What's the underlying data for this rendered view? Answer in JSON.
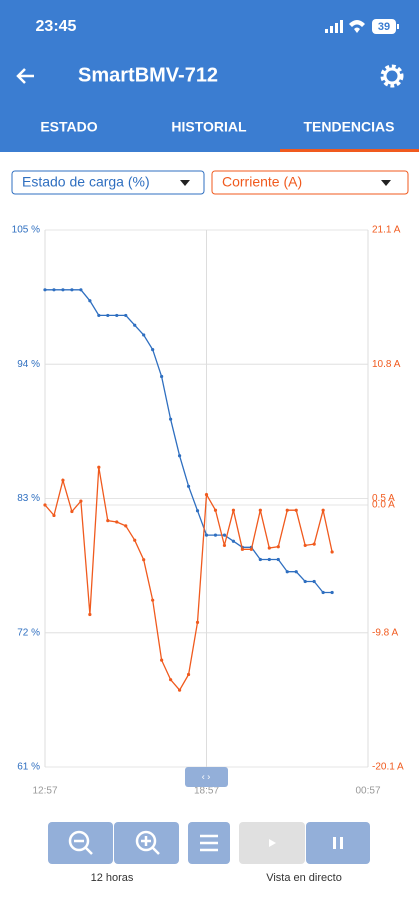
{
  "status_bar": {
    "time": "23:45",
    "battery": "39"
  },
  "header": {
    "title": "SmartBMV-712"
  },
  "tabs": [
    "ESTADO",
    "HISTORIAL",
    "TENDENCIAS"
  ],
  "selectors": {
    "left": "Estado de carga (%)",
    "right": "Corriente (A)"
  },
  "chart_data": {
    "type": "line",
    "categories": [
      "12:57",
      null,
      null,
      null,
      null,
      null,
      null,
      null,
      null,
      null,
      null,
      null,
      null,
      null,
      null,
      null,
      null,
      null,
      "18:57",
      null,
      null,
      null,
      null,
      null,
      null,
      null,
      null,
      null,
      null,
      null,
      null,
      null,
      null,
      null,
      null,
      null,
      "00:57"
    ],
    "ylim": [
      61,
      105
    ],
    "yticks": [
      {
        "value": 61,
        "label": "61 %"
      },
      {
        "value": 72,
        "label": "72 %"
      },
      {
        "value": 83,
        "label": "83 %"
      },
      {
        "value": 94,
        "label": "94 %"
      },
      {
        "value": 105,
        "label": "105 %"
      }
    ],
    "y2lim": [
      -20.1,
      21.1
    ],
    "y2ticks": [
      {
        "value": -20.1,
        "label": "-20.1 A"
      },
      {
        "value": -9.8,
        "label": "-9.8 A"
      },
      {
        "value": 0,
        "label": "0.0 A"
      },
      {
        "value": 0.5,
        "label": "0.5 A"
      },
      {
        "value": 10.8,
        "label": "10.8 A"
      },
      {
        "value": 21.1,
        "label": "21.1 A"
      }
    ],
    "grid": true,
    "series": [
      {
        "name": "Estado de carga (%)",
        "color": "#2f6fc0",
        "values": [
          100.1,
          100.1,
          100.1,
          100.1,
          100.1,
          99.2,
          98.0,
          98.0,
          98.0,
          98.0,
          97.2,
          96.4,
          95.2,
          93.0,
          89.5,
          86.5,
          84.0,
          82.0,
          80.0,
          80.0,
          80.0,
          79.5,
          79.0,
          79.0,
          78.0,
          78.0,
          78.0,
          77.0,
          77.0,
          76.2,
          76.2,
          75.3,
          75.3,
          null,
          null,
          null,
          null
        ]
      },
      {
        "name": "Corriente (A)",
        "color": "#f05a1e",
        "axis": "y2",
        "values": [
          0.0,
          -0.8,
          1.9,
          -0.5,
          0.3,
          -8.4,
          2.9,
          -1.2,
          -1.3,
          -1.6,
          -2.7,
          -4.2,
          -7.3,
          -11.9,
          -13.4,
          -14.2,
          -13.0,
          -9.0,
          0.8,
          -0.4,
          -3.1,
          -0.4,
          -3.4,
          -3.4,
          -0.4,
          -3.3,
          -3.2,
          -0.4,
          -0.4,
          -3.1,
          -3.0,
          -0.4,
          -3.6,
          null,
          null,
          null,
          null
        ]
      }
    ]
  },
  "footer": {
    "zoom_label": "12 horas",
    "live_label": "Vista en directo"
  }
}
